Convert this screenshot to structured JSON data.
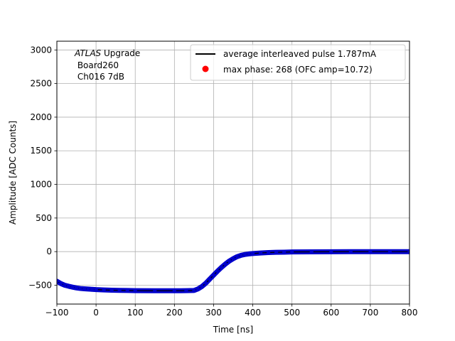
{
  "chart_data": {
    "type": "line",
    "title": "",
    "xlabel": "Time [ns]",
    "ylabel": "Amplitude [ADC Counts]",
    "xlim": [
      -100,
      800
    ],
    "ylim": [
      -780,
      3130
    ],
    "xticks": [
      -100,
      0,
      100,
      200,
      300,
      400,
      500,
      600,
      700,
      800
    ],
    "yticks": [
      -500,
      0,
      500,
      1000,
      1500,
      2000,
      2500,
      3000
    ],
    "grid": true,
    "legend_position": "top-right",
    "annotation": {
      "line1_italic": "ATLAS",
      "line1_rest": " Upgrade",
      "line2": " Board260",
      "line3": " Ch016 7dB"
    },
    "legend": [
      {
        "label": "average interleaved pulse 1.787mA",
        "marker": "line",
        "color": "#000000"
      },
      {
        "label": "max phase: 268 (OFC amp=10.72)",
        "marker": "dot",
        "color": "#ff0000"
      }
    ],
    "series": [
      {
        "name": "average interleaved pulse 1.787mA",
        "color": "#0000cc",
        "x": [
          -100,
          -90,
          -80,
          -70,
          -60,
          -50,
          -40,
          -30,
          -20,
          -10,
          0,
          20,
          40,
          60,
          80,
          100,
          150,
          200,
          230,
          250,
          260,
          270,
          280,
          290,
          300,
          310,
          320,
          330,
          340,
          350,
          360,
          370,
          380,
          390,
          400,
          420,
          440,
          460,
          480,
          500,
          550,
          600,
          650,
          700,
          750,
          800
        ],
        "y": [
          -440,
          -475,
          -500,
          -515,
          -528,
          -540,
          -548,
          -553,
          -557,
          -561,
          -565,
          -570,
          -574,
          -576,
          -578,
          -580,
          -582,
          -582,
          -581,
          -578,
          -555,
          -520,
          -470,
          -410,
          -350,
          -290,
          -235,
          -185,
          -140,
          -105,
          -75,
          -55,
          -42,
          -34,
          -28,
          -20,
          -14,
          -10,
          -8,
          -5,
          -3,
          -2,
          -1,
          0,
          0,
          0
        ]
      }
    ]
  }
}
